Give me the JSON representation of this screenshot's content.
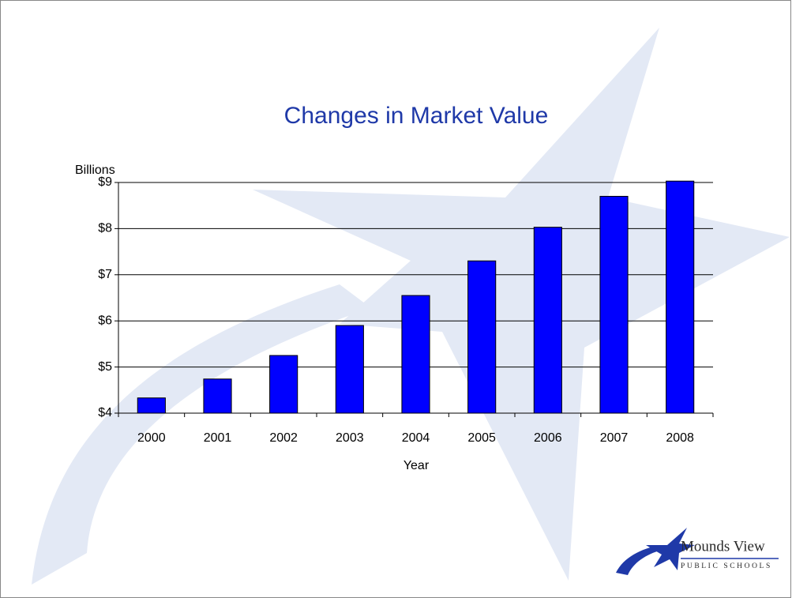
{
  "chart_data": {
    "type": "bar",
    "title": "Changes in Market Value",
    "y_label": "Billions",
    "x_label": "Year",
    "categories": [
      "2000",
      "2001",
      "2002",
      "2003",
      "2004",
      "2005",
      "2006",
      "2007",
      "2008"
    ],
    "values": [
      4.33,
      4.74,
      5.25,
      5.9,
      6.55,
      7.3,
      8.03,
      8.7,
      9.03
    ],
    "color": "#0000ff",
    "ylim": [
      4,
      9
    ],
    "yticks": [
      {
        "value": 4,
        "label": "$4"
      },
      {
        "value": 5,
        "label": "$5"
      },
      {
        "value": 6,
        "label": "$6"
      },
      {
        "value": 7,
        "label": "$7"
      },
      {
        "value": 8,
        "label": "$8"
      },
      {
        "value": 9,
        "label": "$9"
      }
    ],
    "grid": true
  },
  "logo": {
    "name": "Mounds View",
    "subtitle": "PUBLIC SCHOOLS"
  }
}
